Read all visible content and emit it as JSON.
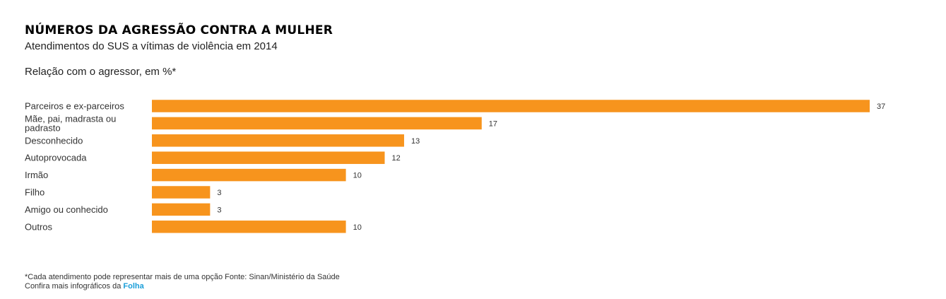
{
  "header": {
    "title": "NÚMEROS DA AGRESSÃO CONTRA A MULHER",
    "subtitle": "Atendimentos do SUS a vítimas de violência em 2014"
  },
  "chart_heading": "Relação com o agressor, em %*",
  "chart_data": {
    "type": "bar",
    "orientation": "horizontal",
    "title": "Relação com o agressor, em %*",
    "categories": [
      "Parceiros e ex-parceiros",
      "Mãe, pai, madrasta ou padrasto",
      "Desconhecido",
      "Autoprovocada",
      "Irmão",
      "Filho",
      "Amigo ou conhecido",
      "Outros"
    ],
    "values": [
      37,
      17,
      13,
      12,
      10,
      3,
      3,
      10
    ],
    "bar_color": "#f7941d",
    "data_labels": true,
    "grid": false,
    "xlim": [
      0,
      37
    ]
  },
  "footer": {
    "note": "*Cada atendimento pode representar mais de uma opção Fonte: Sinan/Ministério da Saúde",
    "more_prefix": "Confira mais infográficos da ",
    "brand": "Folha"
  }
}
